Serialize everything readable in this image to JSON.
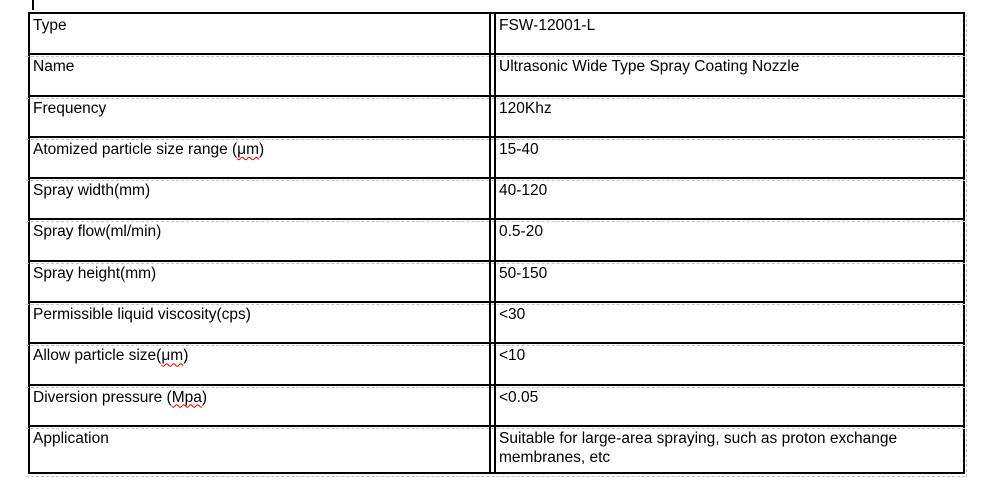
{
  "cursor": {
    "present": true
  },
  "colors": {
    "border": "#000000",
    "gridline": "#c4c4c4",
    "spellcheck": "#dd0000",
    "background": "#ffffff",
    "text": "#000000"
  },
  "table": {
    "rows": [
      {
        "label_pre": "Type",
        "label_wavy": "",
        "label_post": "",
        "value": "FSW-12001-L"
      },
      {
        "label_pre": "Name",
        "label_wavy": "",
        "label_post": "",
        "value": "Ultrasonic Wide Type Spray Coating Nozzle"
      },
      {
        "label_pre": "Frequency",
        "label_wavy": "",
        "label_post": "",
        "value": "120Khz"
      },
      {
        "label_pre": "Atomized particle size range (",
        "label_wavy": "μm",
        "label_post": ")",
        "value": "15-40"
      },
      {
        "label_pre": "Spray width(mm)",
        "label_wavy": "",
        "label_post": "",
        "value": "40-120"
      },
      {
        "label_pre": "Spray flow(ml/min)",
        "label_wavy": "",
        "label_post": "",
        "value": "0.5-20"
      },
      {
        "label_pre": "Spray height(mm)",
        "label_wavy": "",
        "label_post": "",
        "value": "50-150"
      },
      {
        "label_pre": "Permissible liquid viscosity(cps)",
        "label_wavy": "",
        "label_post": "",
        "value": "<30"
      },
      {
        "label_pre": "Allow particle size(",
        "label_wavy": "μm",
        "label_post": ")",
        "value": "<10"
      },
      {
        "label_pre": "Diversion pressure (",
        "label_wavy": "Mpa",
        "label_post": ")",
        "value": "<0.05"
      },
      {
        "label_pre": "Application",
        "label_wavy": "",
        "label_post": "",
        "value": "Suitable for large-area spraying, such as proton exchange membranes, etc"
      }
    ]
  }
}
